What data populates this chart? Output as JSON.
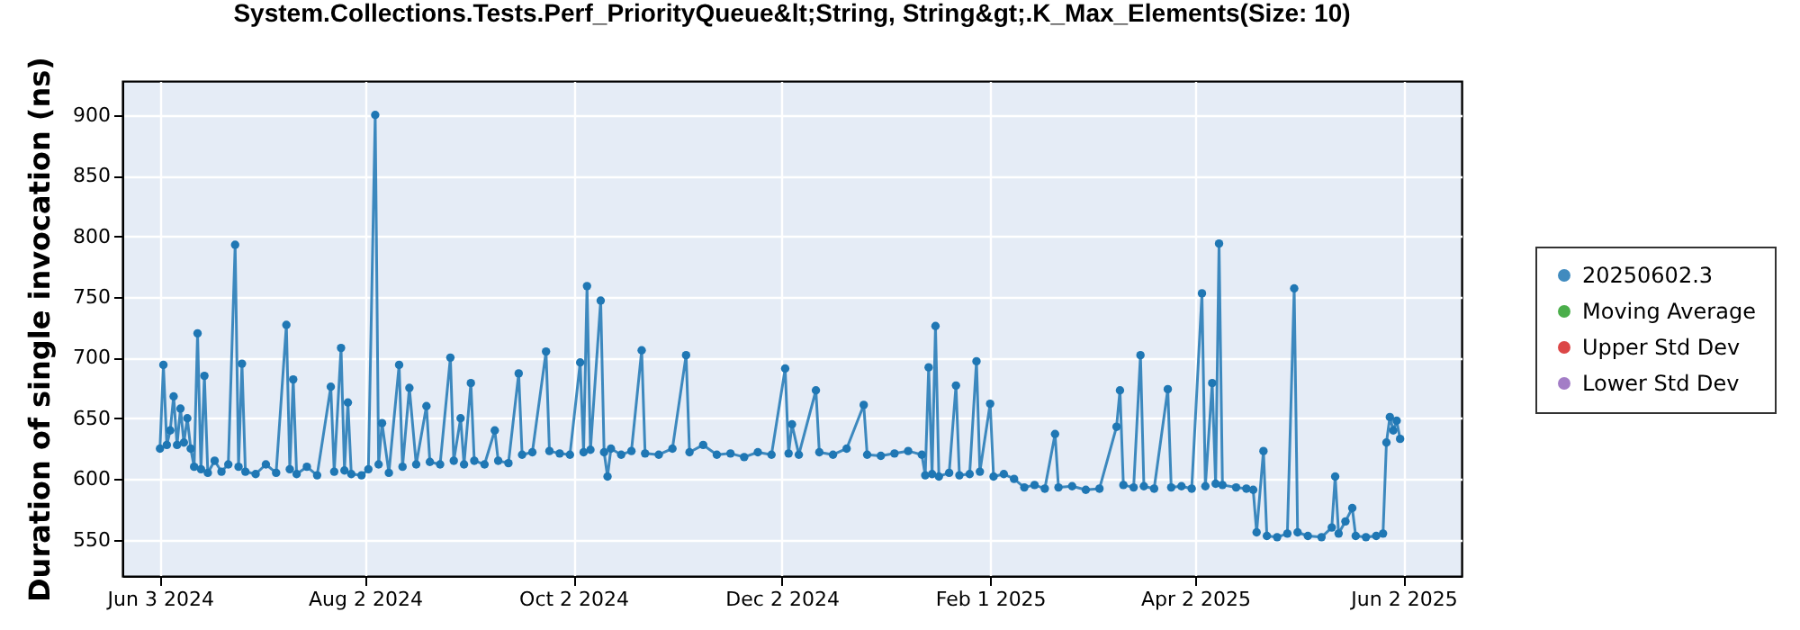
{
  "chart_data": {
    "type": "line",
    "title": "System.Collections.Tests.Perf_PriorityQueue&lt;String, String&gt;.K_Max_Elements(Size: 10)",
    "ylabel": "Duration of single invocation (ns)",
    "xlim": [
      "2024-05-23",
      "2025-06-19"
    ],
    "ylim": [
      520,
      928
    ],
    "xticks": [
      {
        "value": "2024-06-03",
        "label": "Jun 3 2024"
      },
      {
        "value": "2024-08-02",
        "label": "Aug 2 2024"
      },
      {
        "value": "2024-10-02",
        "label": "Oct 2 2024"
      },
      {
        "value": "2024-12-02",
        "label": "Dec 2 2024"
      },
      {
        "value": "2025-02-01",
        "label": "Feb 1 2025"
      },
      {
        "value": "2025-04-02",
        "label": "Apr 2 2025"
      },
      {
        "value": "2025-06-02",
        "label": "Jun 2 2025"
      }
    ],
    "yticks": [
      550,
      600,
      650,
      700,
      750,
      800,
      850,
      900
    ],
    "grid": true,
    "legend": "right",
    "marker": "circle",
    "line_style": "solid",
    "series": [
      {
        "name": "20250602.3",
        "color": "#1f77b4",
        "x": [
          "2024-06-03",
          "2024-06-04",
          "2024-06-05",
          "2024-06-06",
          "2024-06-07",
          "2024-06-08",
          "2024-06-09",
          "2024-06-10",
          "2024-06-11",
          "2024-06-12",
          "2024-06-13",
          "2024-06-14",
          "2024-06-15",
          "2024-06-16",
          "2024-06-17",
          "2024-06-19",
          "2024-06-21",
          "2024-06-23",
          "2024-06-25",
          "2024-06-26",
          "2024-06-27",
          "2024-06-28",
          "2024-07-01",
          "2024-07-04",
          "2024-07-07",
          "2024-07-10",
          "2024-07-11",
          "2024-07-12",
          "2024-07-13",
          "2024-07-16",
          "2024-07-19",
          "2024-07-23",
          "2024-07-24",
          "2024-07-26",
          "2024-07-27",
          "2024-07-28",
          "2024-07-29",
          "2024-08-01",
          "2024-08-03",
          "2024-08-05",
          "2024-08-06",
          "2024-08-07",
          "2024-08-09",
          "2024-08-12",
          "2024-08-13",
          "2024-08-15",
          "2024-08-17",
          "2024-08-20",
          "2024-08-21",
          "2024-08-24",
          "2024-08-27",
          "2024-08-28",
          "2024-08-30",
          "2024-08-31",
          "2024-09-02",
          "2024-09-03",
          "2024-09-06",
          "2024-09-09",
          "2024-09-10",
          "2024-09-13",
          "2024-09-16",
          "2024-09-17",
          "2024-09-20",
          "2024-09-24",
          "2024-09-25",
          "2024-09-28",
          "2024-10-01",
          "2024-10-04",
          "2024-10-05",
          "2024-10-06",
          "2024-10-07",
          "2024-10-10",
          "2024-10-11",
          "2024-10-12",
          "2024-10-13",
          "2024-10-16",
          "2024-10-19",
          "2024-10-22",
          "2024-10-23",
          "2024-10-27",
          "2024-10-31",
          "2024-11-04",
          "2024-11-05",
          "2024-11-09",
          "2024-11-13",
          "2024-11-17",
          "2024-11-21",
          "2024-11-25",
          "2024-11-29",
          "2024-12-03",
          "2024-12-04",
          "2024-12-05",
          "2024-12-07",
          "2024-12-12",
          "2024-12-13",
          "2024-12-17",
          "2024-12-21",
          "2024-12-26",
          "2024-12-27",
          "2024-12-31",
          "2025-01-04",
          "2025-01-08",
          "2025-01-12",
          "2025-01-13",
          "2025-01-14",
          "2025-01-15",
          "2025-01-16",
          "2025-01-17",
          "2025-01-20",
          "2025-01-22",
          "2025-01-23",
          "2025-01-26",
          "2025-01-28",
          "2025-01-29",
          "2025-02-01",
          "2025-02-02",
          "2025-02-05",
          "2025-02-08",
          "2025-02-11",
          "2025-02-14",
          "2025-02-17",
          "2025-02-20",
          "2025-02-21",
          "2025-02-25",
          "2025-03-01",
          "2025-03-05",
          "2025-03-10",
          "2025-03-11",
          "2025-03-12",
          "2025-03-15",
          "2025-03-17",
          "2025-03-18",
          "2025-03-21",
          "2025-03-25",
          "2025-03-26",
          "2025-03-29",
          "2025-04-01",
          "2025-04-04",
          "2025-04-05",
          "2025-04-07",
          "2025-04-08",
          "2025-04-09",
          "2025-04-10",
          "2025-04-14",
          "2025-04-17",
          "2025-04-19",
          "2025-04-20",
          "2025-04-22",
          "2025-04-23",
          "2025-04-26",
          "2025-04-29",
          "2025-05-01",
          "2025-05-02",
          "2025-05-05",
          "2025-05-09",
          "2025-05-12",
          "2025-05-13",
          "2025-05-14",
          "2025-05-16",
          "2025-05-18",
          "2025-05-19",
          "2025-05-22",
          "2025-05-25",
          "2025-05-27",
          "2025-05-28",
          "2025-05-29",
          "2025-05-30",
          "2025-05-31",
          "2025-06-01"
        ],
        "values": [
          625,
          694,
          628,
          640,
          668,
          628,
          658,
          630,
          650,
          625,
          610,
          720,
          608,
          685,
          605,
          615,
          606,
          612,
          793,
          610,
          695,
          606,
          604,
          612,
          605,
          727,
          608,
          682,
          604,
          610,
          603,
          676,
          606,
          708,
          607,
          663,
          604,
          603,
          608,
          900,
          612,
          646,
          605,
          694,
          610,
          675,
          612,
          660,
          614,
          612,
          700,
          615,
          650,
          612,
          679,
          615,
          612,
          640,
          615,
          613,
          687,
          620,
          622,
          705,
          623,
          621,
          620,
          696,
          622,
          759,
          624,
          747,
          622,
          602,
          625,
          620,
          623,
          706,
          621,
          620,
          625,
          702,
          622,
          628,
          620,
          621,
          618,
          622,
          620,
          691,
          621,
          645,
          620,
          673,
          622,
          620,
          625,
          661,
          620,
          619,
          621,
          623,
          620,
          603,
          692,
          604,
          726,
          602,
          605,
          677,
          603,
          604,
          697,
          606,
          662,
          602,
          604,
          600,
          593,
          595,
          592,
          637,
          593,
          594,
          591,
          592,
          643,
          673,
          595,
          593,
          702,
          594,
          592,
          674,
          593,
          594,
          592,
          753,
          594,
          679,
          596,
          794,
          595,
          593,
          592,
          591,
          556,
          623,
          553,
          552,
          555,
          757,
          556,
          553,
          552,
          560,
          602,
          555,
          565,
          576,
          553,
          552,
          553,
          555,
          630,
          651,
          640,
          648,
          633
        ]
      },
      {
        "name": "Moving Average",
        "color": "#2ca02c"
      },
      {
        "name": "Upper Std Dev",
        "color": "#d62728"
      },
      {
        "name": "Lower Std Dev",
        "color": "#9467bd"
      }
    ]
  }
}
